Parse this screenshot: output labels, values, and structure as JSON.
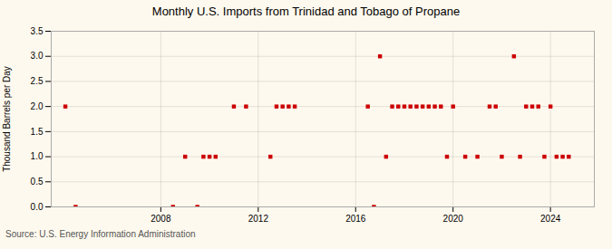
{
  "chart_data": {
    "type": "scatter",
    "title": "Monthly U.S. Imports from Trinidad and Tobago of Propane",
    "ylabel": "Thousand Barrels per Day",
    "source": "Source: U.S. Energy Information Administration",
    "color": "#cc0000",
    "marker": "square",
    "grid": true,
    "xlim": [
      2003.5,
      2025.8
    ],
    "xticks": [
      2008,
      2012,
      2016,
      2020,
      2024
    ],
    "ylim": [
      0,
      3.5
    ],
    "yticks": [
      {
        "value": 0,
        "label": "0.0"
      },
      0.5,
      {
        "value": 1,
        "label": "1.0"
      },
      1.5,
      {
        "value": 2,
        "label": "2.0"
      },
      2.5,
      {
        "value": 3,
        "label": "3.0"
      },
      3.5
    ],
    "x": [
      2004.08,
      2004.5,
      2008.5,
      2009.0,
      2009.5,
      2009.75,
      2010.0,
      2010.25,
      2011.0,
      2011.5,
      2012.5,
      2012.75,
      2013.0,
      2013.25,
      2013.5,
      2016.5,
      2016.75,
      2017.0,
      2017.25,
      2017.5,
      2017.75,
      2018.0,
      2018.25,
      2018.5,
      2018.75,
      2019.0,
      2019.25,
      2019.5,
      2019.75,
      2020.0,
      2020.5,
      2021.0,
      2021.5,
      2021.75,
      2022.0,
      2022.5,
      2022.75,
      2023.0,
      2023.25,
      2023.5,
      2023.75,
      2024.0,
      2024.25,
      2024.5,
      2024.75
    ],
    "values": [
      2.0,
      0.0,
      0.0,
      1.0,
      0.0,
      1.0,
      1.0,
      1.0,
      2.0,
      2.0,
      1.0,
      2.0,
      2.0,
      2.0,
      2.0,
      2.0,
      0.0,
      3.0,
      1.0,
      2.0,
      2.0,
      2.0,
      2.0,
      2.0,
      2.0,
      2.0,
      2.0,
      2.0,
      1.0,
      2.0,
      1.0,
      1.0,
      2.0,
      2.0,
      1.0,
      3.0,
      1.0,
      2.0,
      2.0,
      2.0,
      1.0,
      2.0,
      1.0,
      1.0,
      1.0
    ]
  }
}
